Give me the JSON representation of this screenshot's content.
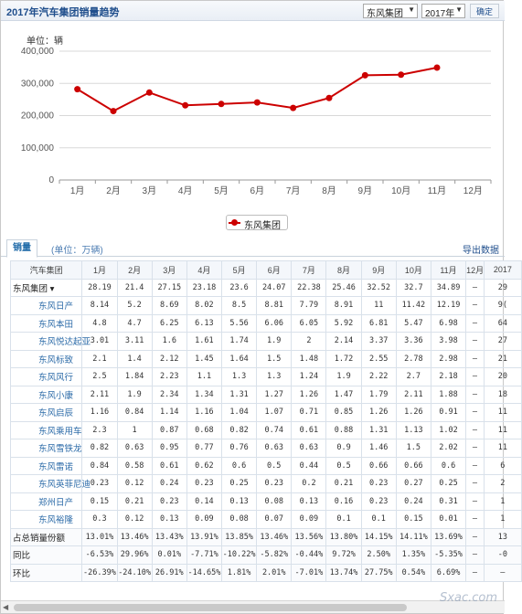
{
  "header": {
    "title": "2017年汽车集团销量趋势",
    "group_select": "东风集团",
    "year_select": "2017年",
    "confirm_label": "确定"
  },
  "chart_data": {
    "type": "line",
    "unit_label": "单位：辆",
    "categories": [
      "1月",
      "2月",
      "3月",
      "4月",
      "5月",
      "6月",
      "7月",
      "8月",
      "9月",
      "10月",
      "11月",
      "12月"
    ],
    "y_ticks": [
      "400,000",
      "300,000",
      "200,000",
      "100,000",
      "0"
    ],
    "ylim": [
      0,
      400000
    ],
    "series": [
      {
        "name": "东风集团",
        "color": "#cc0000",
        "values": [
          281900,
          214000,
          271500,
          231800,
          236000,
          240700,
          223800,
          254600,
          325200,
          327000,
          348900,
          null
        ]
      }
    ],
    "legend_position": "bottom-center",
    "grid": true
  },
  "tabs": {
    "active_label": "销量",
    "unit_note": "(单位：万辆)",
    "export_label": "导出数据"
  },
  "table": {
    "headers": [
      "汽车集团",
      "1月",
      "2月",
      "3月",
      "4月",
      "5月",
      "6月",
      "7月",
      "8月",
      "9月",
      "10月",
      "11月",
      "12月",
      "2017"
    ],
    "rows": [
      {
        "name": "东风集团 ▾",
        "kind": "top",
        "cells": [
          "28.19",
          "21.4",
          "27.15",
          "23.18",
          "23.6",
          "24.07",
          "22.38",
          "25.46",
          "32.52",
          "32.7",
          "34.89",
          "–",
          "29"
        ]
      },
      {
        "name": "东风日产",
        "kind": "brand",
        "cells": [
          "8.14",
          "5.2",
          "8.69",
          "8.02",
          "8.5",
          "8.81",
          "7.79",
          "8.91",
          "11",
          "11.42",
          "12.19",
          "–",
          "9("
        ]
      },
      {
        "name": "东风本田",
        "kind": "brand",
        "cells": [
          "4.8",
          "4.7",
          "6.25",
          "6.13",
          "5.56",
          "6.06",
          "6.05",
          "5.92",
          "6.81",
          "5.47",
          "6.98",
          "–",
          "64"
        ]
      },
      {
        "name": "东风悦达起亚",
        "kind": "brand",
        "cells": [
          "3.01",
          "3.11",
          "1.6",
          "1.61",
          "1.74",
          "1.9",
          "2",
          "2.14",
          "3.37",
          "3.36",
          "3.98",
          "–",
          "27"
        ]
      },
      {
        "name": "东风标致",
        "kind": "brand",
        "cells": [
          "2.1",
          "1.4",
          "2.12",
          "1.45",
          "1.64",
          "1.5",
          "1.48",
          "1.72",
          "2.55",
          "2.78",
          "2.98",
          "–",
          "21"
        ]
      },
      {
        "name": "东风风行",
        "kind": "brand",
        "cells": [
          "2.5",
          "1.84",
          "2.23",
          "1.1",
          "1.3",
          "1.3",
          "1.24",
          "1.9",
          "2.22",
          "2.7",
          "2.18",
          "–",
          "20"
        ]
      },
      {
        "name": "东风小康",
        "kind": "brand",
        "cells": [
          "2.11",
          "1.9",
          "2.34",
          "1.34",
          "1.31",
          "1.27",
          "1.26",
          "1.47",
          "1.79",
          "2.11",
          "1.88",
          "–",
          "18"
        ]
      },
      {
        "name": "东风启辰",
        "kind": "brand",
        "cells": [
          "1.16",
          "0.84",
          "1.14",
          "1.16",
          "1.04",
          "1.07",
          "0.71",
          "0.85",
          "1.26",
          "1.26",
          "0.91",
          "–",
          "11"
        ]
      },
      {
        "name": "东风乘用车",
        "kind": "brand",
        "cells": [
          "2.3",
          "1",
          "0.87",
          "0.68",
          "0.82",
          "0.74",
          "0.61",
          "0.88",
          "1.31",
          "1.13",
          "1.02",
          "–",
          "11"
        ]
      },
      {
        "name": "东风雪铁龙",
        "kind": "brand",
        "cells": [
          "0.82",
          "0.63",
          "0.95",
          "0.77",
          "0.76",
          "0.63",
          "0.63",
          "0.9",
          "1.46",
          "1.5",
          "2.02",
          "–",
          "11"
        ]
      },
      {
        "name": "东风雷诺",
        "kind": "brand",
        "cells": [
          "0.84",
          "0.58",
          "0.61",
          "0.62",
          "0.6",
          "0.5",
          "0.44",
          "0.5",
          "0.66",
          "0.66",
          "0.6",
          "–",
          "6"
        ]
      },
      {
        "name": "东风英菲尼迪",
        "kind": "brand",
        "cells": [
          "0.23",
          "0.12",
          "0.24",
          "0.23",
          "0.25",
          "0.23",
          "0.2",
          "0.21",
          "0.23",
          "0.27",
          "0.25",
          "–",
          "2"
        ]
      },
      {
        "name": "郑州日产",
        "kind": "brand",
        "cells": [
          "0.15",
          "0.21",
          "0.23",
          "0.14",
          "0.13",
          "0.08",
          "0.13",
          "0.16",
          "0.23",
          "0.24",
          "0.31",
          "–",
          "1"
        ]
      },
      {
        "name": "东风裕隆",
        "kind": "brand",
        "cells": [
          "0.3",
          "0.12",
          "0.13",
          "0.09",
          "0.08",
          "0.07",
          "0.09",
          "0.1",
          "0.1",
          "0.15",
          "0.01",
          "–",
          "1"
        ]
      },
      {
        "name": "占总销量份额",
        "kind": "summary",
        "cells": [
          "13.01%",
          "13.46%",
          "13.43%",
          "13.91%",
          "13.85%",
          "13.46%",
          "13.56%",
          "13.80%",
          "14.15%",
          "14.11%",
          "13.69%",
          "–",
          "13"
        ]
      },
      {
        "name": "同比",
        "kind": "summary",
        "cells": [
          "-6.53%",
          "29.96%",
          "0.01%",
          "-7.71%",
          "-10.22%",
          "-5.82%",
          "-0.44%",
          "9.72%",
          "2.50%",
          "1.35%",
          "-5.35%",
          "–",
          "-0"
        ]
      },
      {
        "name": "环比",
        "kind": "summary",
        "cells": [
          "-26.39%",
          "-24.10%",
          "26.91%",
          "-14.65%",
          "1.81%",
          "2.01%",
          "-7.01%",
          "13.74%",
          "27.75%",
          "0.54%",
          "6.69%",
          "–",
          "–"
        ]
      }
    ]
  },
  "watermark": "Sxac.com"
}
